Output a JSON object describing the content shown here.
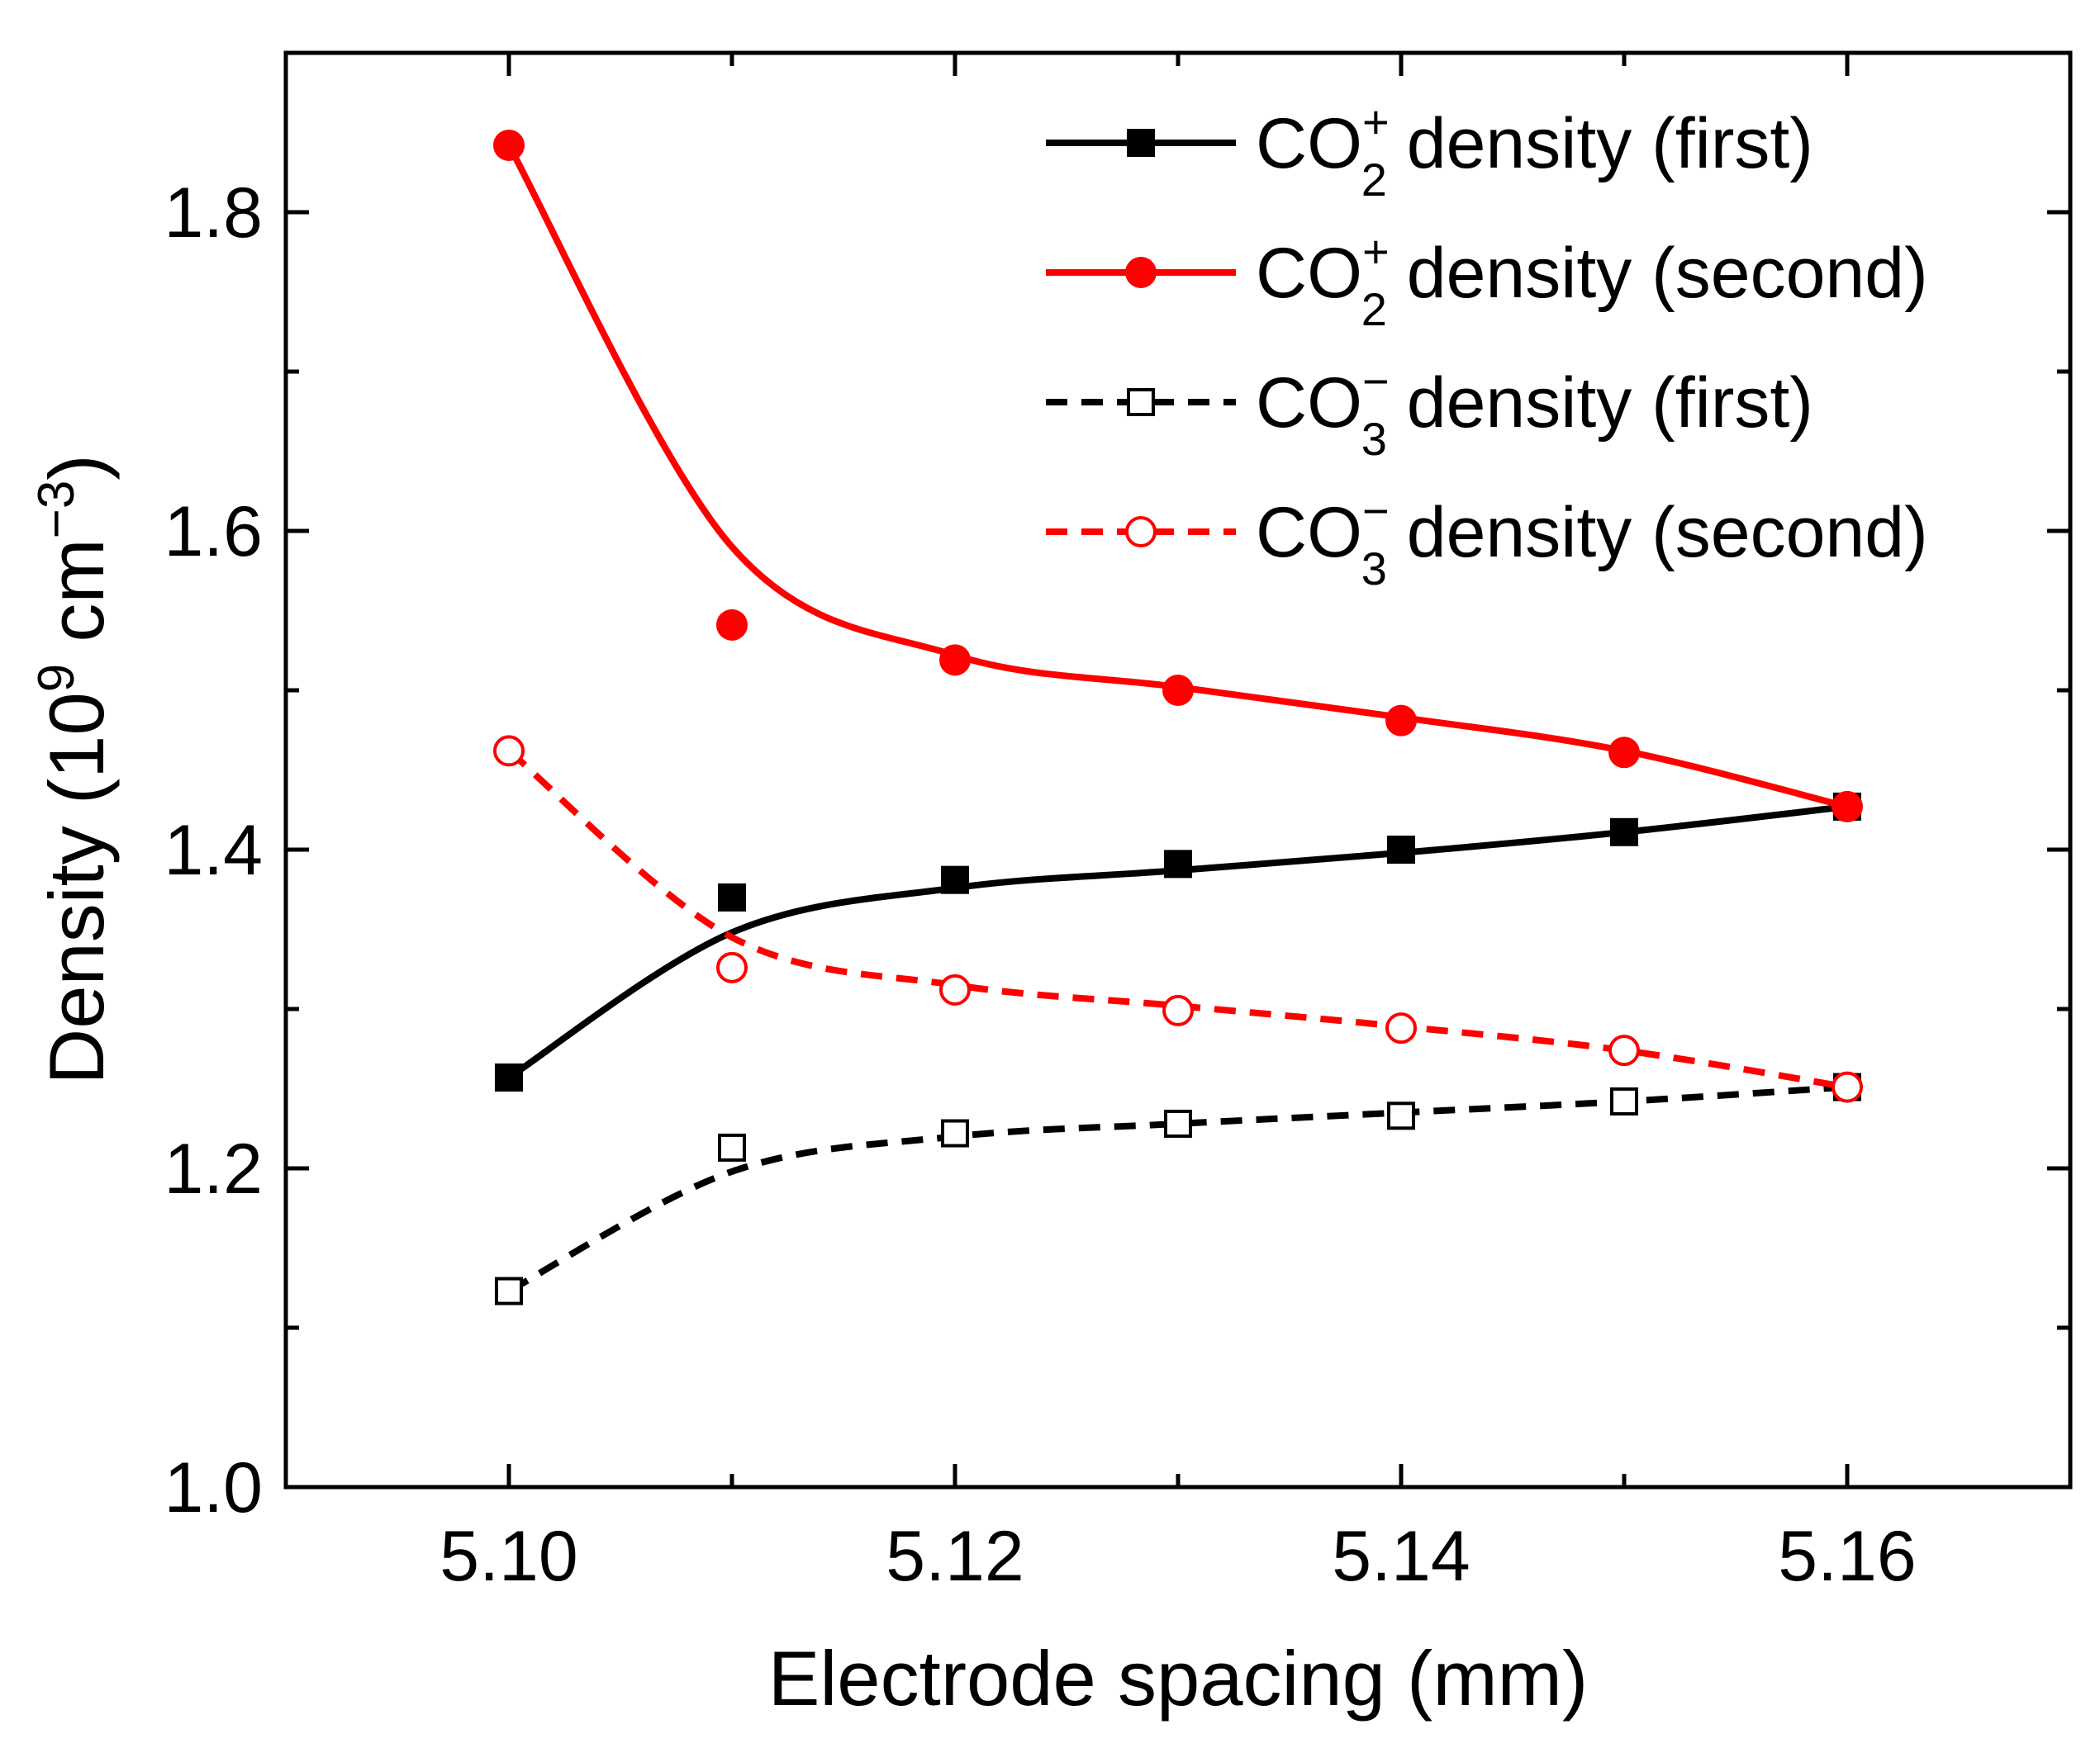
{
  "chart_data": {
    "type": "line",
    "xlabel": "Electrode spacing (mm)",
    "ylabel": {
      "prefix": "Density (10",
      "exp1": "9",
      "middle": " cm",
      "exp2": "−3",
      "suffix": ")"
    },
    "xlim": [
      5.09,
      5.17
    ],
    "ylim": [
      1.0,
      1.9
    ],
    "x_ticks": [
      5.1,
      5.12,
      5.14,
      5.16
    ],
    "x_tick_labels": [
      "5.10",
      "5.12",
      "5.14",
      "5.16"
    ],
    "x_minor_ticks": [
      5.09,
      5.11,
      5.13,
      5.15,
      5.17
    ],
    "y_ticks": [
      1.0,
      1.2,
      1.4,
      1.6,
      1.8
    ],
    "y_tick_labels": [
      "1.0",
      "1.2",
      "1.4",
      "1.6",
      "1.8"
    ],
    "y_minor_ticks": [
      1.1,
      1.3,
      1.5,
      1.7
    ],
    "legend_position": "top-right",
    "grid": false,
    "x": [
      5.1,
      5.11,
      5.12,
      5.13,
      5.14,
      5.15,
      5.16
    ],
    "series": [
      {
        "legend": {
          "base": "CO",
          "sub": "2",
          "sup": "+",
          "rest": " density (first)"
        },
        "color": "#000000",
        "marker": "square-filled",
        "dash": "solid",
        "values": [
          1.257,
          1.37,
          1.381,
          1.391,
          1.4,
          1.411,
          1.427
        ],
        "fit": [
          1.257,
          1.348,
          1.376,
          1.387,
          1.398,
          1.411,
          1.427
        ]
      },
      {
        "legend": {
          "base": "CO",
          "sub": "2",
          "sup": "+",
          "rest": " density (second)"
        },
        "color": "#ff0000",
        "marker": "circle-filled",
        "dash": "solid",
        "values": [
          1.842,
          1.541,
          1.519,
          1.5,
          1.481,
          1.461,
          1.427
        ],
        "fit": [
          1.842,
          1.59,
          1.522,
          1.502,
          1.483,
          1.462,
          1.427
        ]
      },
      {
        "legend": {
          "base": "CO",
          "sub": "3",
          "sup": "−",
          "rest": " density (first)"
        },
        "color": "#000000",
        "marker": "square-open",
        "dash": "dashed",
        "values": [
          1.123,
          1.213,
          1.222,
          1.228,
          1.233,
          1.242,
          1.251
        ],
        "fit": [
          1.123,
          1.198,
          1.22,
          1.228,
          1.235,
          1.242,
          1.251
        ]
      },
      {
        "legend": {
          "base": "CO",
          "sub": "3",
          "sup": "−",
          "rest": " density (second)"
        },
        "color": "#ff0000",
        "marker": "circle-open",
        "dash": "dashed",
        "values": [
          1.462,
          1.326,
          1.312,
          1.299,
          1.288,
          1.274,
          1.251
        ],
        "fit": [
          1.462,
          1.345,
          1.315,
          1.302,
          1.289,
          1.274,
          1.251
        ]
      }
    ]
  }
}
